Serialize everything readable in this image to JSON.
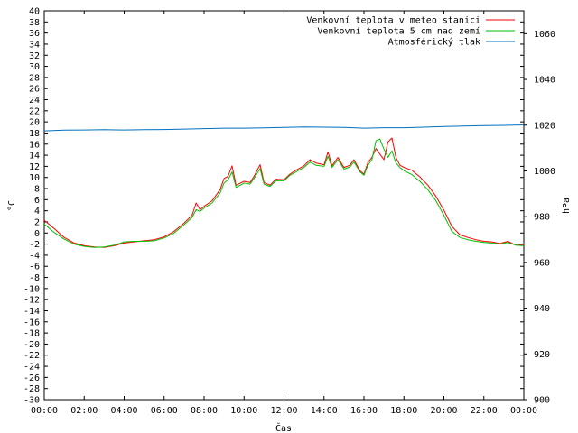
{
  "chart_data": {
    "type": "line",
    "xlabel": "Čas",
    "ylabel_left": "°C",
    "ylabel_right": "hPa",
    "x_ticks": [
      "00:00",
      "02:00",
      "04:00",
      "06:00",
      "08:00",
      "10:00",
      "12:00",
      "14:00",
      "16:00",
      "18:00",
      "20:00",
      "22:00",
      "00:00"
    ],
    "x_range_hours": [
      0,
      24
    ],
    "y_left_range": [
      -30,
      40
    ],
    "y_left_step": 2,
    "y_right_range": [
      900,
      1070
    ],
    "y_right_ticks": [
      900,
      920,
      940,
      960,
      980,
      1000,
      1020,
      1040,
      1060
    ],
    "grid": false,
    "legend_position": "top-right",
    "series": [
      {
        "name": "Venkovní teplota v meteo stanici",
        "color": "#ff0000",
        "axis": "left",
        "points": [
          [
            0,
            2.3
          ],
          [
            0.5,
            0.8
          ],
          [
            1,
            -0.8
          ],
          [
            1.5,
            -1.8
          ],
          [
            2,
            -2.3
          ],
          [
            2.5,
            -2.5
          ],
          [
            3,
            -2.6
          ],
          [
            3.5,
            -2.3
          ],
          [
            4,
            -1.8
          ],
          [
            4.5,
            -1.6
          ],
          [
            5,
            -1.4
          ],
          [
            5.5,
            -1.2
          ],
          [
            6,
            -0.7
          ],
          [
            6.5,
            0.3
          ],
          [
            7,
            1.8
          ],
          [
            7.4,
            3.2
          ],
          [
            7.6,
            5.4
          ],
          [
            7.8,
            4.2
          ],
          [
            8,
            4.8
          ],
          [
            8.4,
            5.8
          ],
          [
            8.8,
            7.8
          ],
          [
            9,
            9.8
          ],
          [
            9.2,
            10.2
          ],
          [
            9.4,
            12.1
          ],
          [
            9.6,
            8.6
          ],
          [
            10,
            9.3
          ],
          [
            10.3,
            9.1
          ],
          [
            10.5,
            10.2
          ],
          [
            10.8,
            12.3
          ],
          [
            11,
            9.1
          ],
          [
            11.3,
            8.6
          ],
          [
            11.6,
            9.7
          ],
          [
            12,
            9.6
          ],
          [
            12.3,
            10.6
          ],
          [
            12.6,
            11.3
          ],
          [
            13,
            12.1
          ],
          [
            13.3,
            13.2
          ],
          [
            13.6,
            12.6
          ],
          [
            14,
            12.3
          ],
          [
            14.2,
            14.6
          ],
          [
            14.4,
            12.1
          ],
          [
            14.7,
            13.6
          ],
          [
            15,
            11.8
          ],
          [
            15.3,
            12.2
          ],
          [
            15.5,
            13.2
          ],
          [
            15.8,
            11.2
          ],
          [
            16,
            10.6
          ],
          [
            16.2,
            12.7
          ],
          [
            16.4,
            13.6
          ],
          [
            16.6,
            15.2
          ],
          [
            16.8,
            14.2
          ],
          [
            17,
            13.2
          ],
          [
            17.2,
            16.4
          ],
          [
            17.4,
            17.1
          ],
          [
            17.6,
            13.6
          ],
          [
            17.8,
            12.2
          ],
          [
            18,
            11.8
          ],
          [
            18.4,
            11.3
          ],
          [
            18.8,
            10.1
          ],
          [
            19.2,
            8.6
          ],
          [
            19.6,
            6.6
          ],
          [
            20,
            4.1
          ],
          [
            20.4,
            1.2
          ],
          [
            20.8,
            -0.3
          ],
          [
            21.2,
            -0.8
          ],
          [
            21.6,
            -1.2
          ],
          [
            22,
            -1.5
          ],
          [
            22.4,
            -1.6
          ],
          [
            22.8,
            -1.9
          ],
          [
            23.2,
            -1.5
          ],
          [
            23.6,
            -2.2
          ],
          [
            24,
            -2.1
          ]
        ]
      },
      {
        "name": "Venkovní teplota 5 cm nad zemí",
        "color": "#00c000",
        "axis": "left",
        "points": [
          [
            0,
            1.6
          ],
          [
            0.5,
            0.1
          ],
          [
            1,
            -1.1
          ],
          [
            1.5,
            -2.0
          ],
          [
            2,
            -2.4
          ],
          [
            2.5,
            -2.6
          ],
          [
            3,
            -2.5
          ],
          [
            3.5,
            -2.2
          ],
          [
            4,
            -1.6
          ],
          [
            4.5,
            -1.5
          ],
          [
            5,
            -1.5
          ],
          [
            5.5,
            -1.4
          ],
          [
            6,
            -0.9
          ],
          [
            6.5,
            0.0
          ],
          [
            7,
            1.5
          ],
          [
            7.4,
            2.8
          ],
          [
            7.6,
            4.2
          ],
          [
            7.8,
            3.9
          ],
          [
            8,
            4.5
          ],
          [
            8.4,
            5.4
          ],
          [
            8.8,
            7.2
          ],
          [
            9,
            9.0
          ],
          [
            9.2,
            9.6
          ],
          [
            9.4,
            11.0
          ],
          [
            9.6,
            8.2
          ],
          [
            10,
            9.0
          ],
          [
            10.3,
            8.8
          ],
          [
            10.5,
            9.8
          ],
          [
            10.8,
            11.6
          ],
          [
            11,
            8.8
          ],
          [
            11.3,
            8.4
          ],
          [
            11.6,
            9.4
          ],
          [
            12,
            9.4
          ],
          [
            12.3,
            10.4
          ],
          [
            12.6,
            11.0
          ],
          [
            13,
            11.8
          ],
          [
            13.3,
            12.8
          ],
          [
            13.6,
            12.2
          ],
          [
            14,
            12.0
          ],
          [
            14.2,
            13.8
          ],
          [
            14.4,
            11.8
          ],
          [
            14.7,
            13.2
          ],
          [
            15,
            11.5
          ],
          [
            15.3,
            11.9
          ],
          [
            15.5,
            12.8
          ],
          [
            15.8,
            11.0
          ],
          [
            16,
            10.4
          ],
          [
            16.2,
            12.2
          ],
          [
            16.4,
            13.2
          ],
          [
            16.6,
            16.6
          ],
          [
            16.8,
            16.9
          ],
          [
            17,
            15.1
          ],
          [
            17.2,
            13.6
          ],
          [
            17.4,
            14.8
          ],
          [
            17.6,
            12.6
          ],
          [
            17.8,
            11.8
          ],
          [
            18,
            11.2
          ],
          [
            18.4,
            10.5
          ],
          [
            18.8,
            9.3
          ],
          [
            19.2,
            7.8
          ],
          [
            19.6,
            5.8
          ],
          [
            20,
            3.2
          ],
          [
            20.4,
            0.3
          ],
          [
            20.8,
            -0.8
          ],
          [
            21.2,
            -1.2
          ],
          [
            21.6,
            -1.5
          ],
          [
            22,
            -1.7
          ],
          [
            22.4,
            -1.8
          ],
          [
            22.8,
            -2.0
          ],
          [
            23.2,
            -1.7
          ],
          [
            23.6,
            -2.2
          ],
          [
            24,
            -2.3
          ]
        ]
      },
      {
        "name": "Atmosférický tlak",
        "color": "#0070c0",
        "axis": "right",
        "points": [
          [
            0,
            1017.5
          ],
          [
            1,
            1017.8
          ],
          [
            2,
            1017.9
          ],
          [
            3,
            1018.0
          ],
          [
            4,
            1017.9
          ],
          [
            5,
            1018.0
          ],
          [
            6,
            1018.1
          ],
          [
            7,
            1018.3
          ],
          [
            8,
            1018.5
          ],
          [
            9,
            1018.7
          ],
          [
            10,
            1018.7
          ],
          [
            11,
            1018.8
          ],
          [
            12,
            1019.0
          ],
          [
            13,
            1019.2
          ],
          [
            14,
            1019.1
          ],
          [
            15,
            1019.0
          ],
          [
            16,
            1018.7
          ],
          [
            17,
            1018.9
          ],
          [
            18,
            1018.9
          ],
          [
            19,
            1019.1
          ],
          [
            20,
            1019.4
          ],
          [
            21,
            1019.6
          ],
          [
            22,
            1019.8
          ],
          [
            23,
            1019.9
          ],
          [
            24,
            1020.1
          ]
        ]
      }
    ]
  }
}
